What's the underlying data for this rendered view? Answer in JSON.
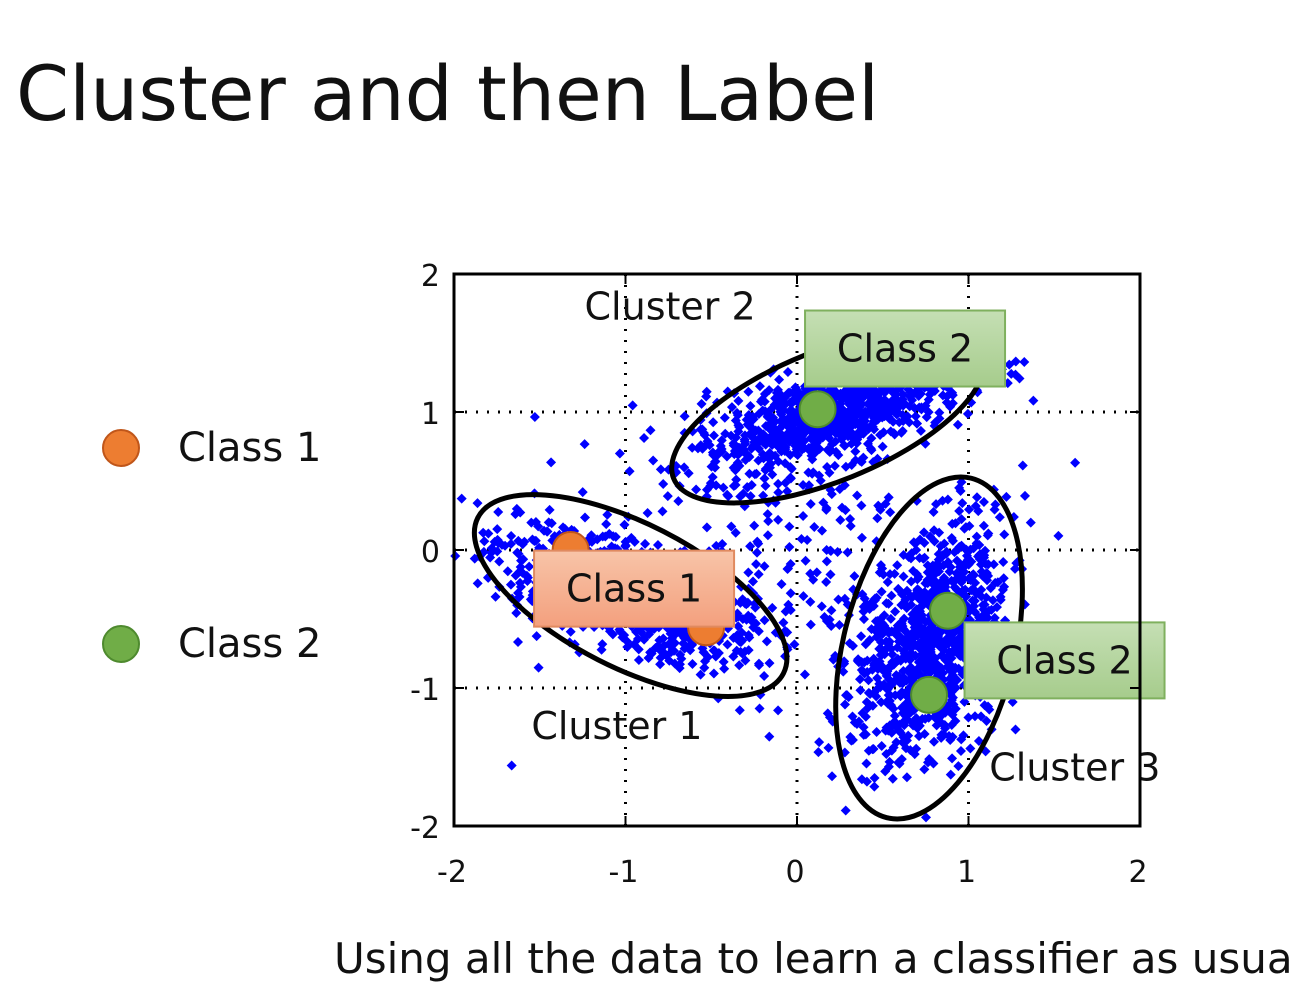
{
  "title": "Cluster and then Label",
  "caption": "Using all the data to learn a classifier as usual",
  "legend": [
    {
      "label": "Class 1",
      "color": "#ED7D31"
    },
    {
      "label": "Class 2",
      "color": "#70AD47"
    }
  ],
  "chart_data": {
    "type": "scatter",
    "xlim": [
      -2,
      2
    ],
    "ylim": [
      -2,
      2
    ],
    "x_ticks": [
      "-2",
      "-1",
      "0",
      "1",
      "2"
    ],
    "y_ticks": [
      "2",
      "1",
      "0",
      "-1",
      "-2"
    ],
    "grid": true,
    "point_color": "#0000FF",
    "clusters": [
      {
        "label": "Cluster 1",
        "center": [
          -0.97,
          -0.33
        ],
        "rx": 1.0,
        "ry": 0.42,
        "angle_deg": -27,
        "label_pos": [
          -1.05,
          -1.37
        ]
      },
      {
        "label": "Cluster 2",
        "center": [
          0.18,
          0.97
        ],
        "rx": 0.97,
        "ry": 0.38,
        "angle_deg": 22,
        "label_pos": [
          -0.74,
          1.67
        ]
      },
      {
        "label": "Cluster 3",
        "center": [
          0.77,
          -0.71
        ],
        "rx": 1.02,
        "ry": 0.5,
        "angle_deg": 76,
        "label_pos": [
          1.62,
          -1.67
        ]
      }
    ],
    "labeled_points": [
      {
        "x": -1.32,
        "y": 0.0,
        "class": "Class 1"
      },
      {
        "x": -0.53,
        "y": -0.56,
        "class": "Class 1"
      },
      {
        "x": 0.12,
        "y": 1.02,
        "class": "Class 2"
      },
      {
        "x": 0.88,
        "y": -0.44,
        "class": "Class 2"
      },
      {
        "x": 0.77,
        "y": -1.05,
        "class": "Class 2"
      }
    ],
    "class_boxes": [
      {
        "label": "Class 1",
        "class": "Class 1",
        "anchor": [
          -0.95,
          -0.28
        ]
      },
      {
        "label": "Class 2",
        "class": "Class 2",
        "anchor": [
          0.63,
          1.46
        ]
      },
      {
        "label": "Class 2",
        "class": "Class 2",
        "anchor": [
          1.56,
          -0.8
        ]
      }
    ]
  }
}
